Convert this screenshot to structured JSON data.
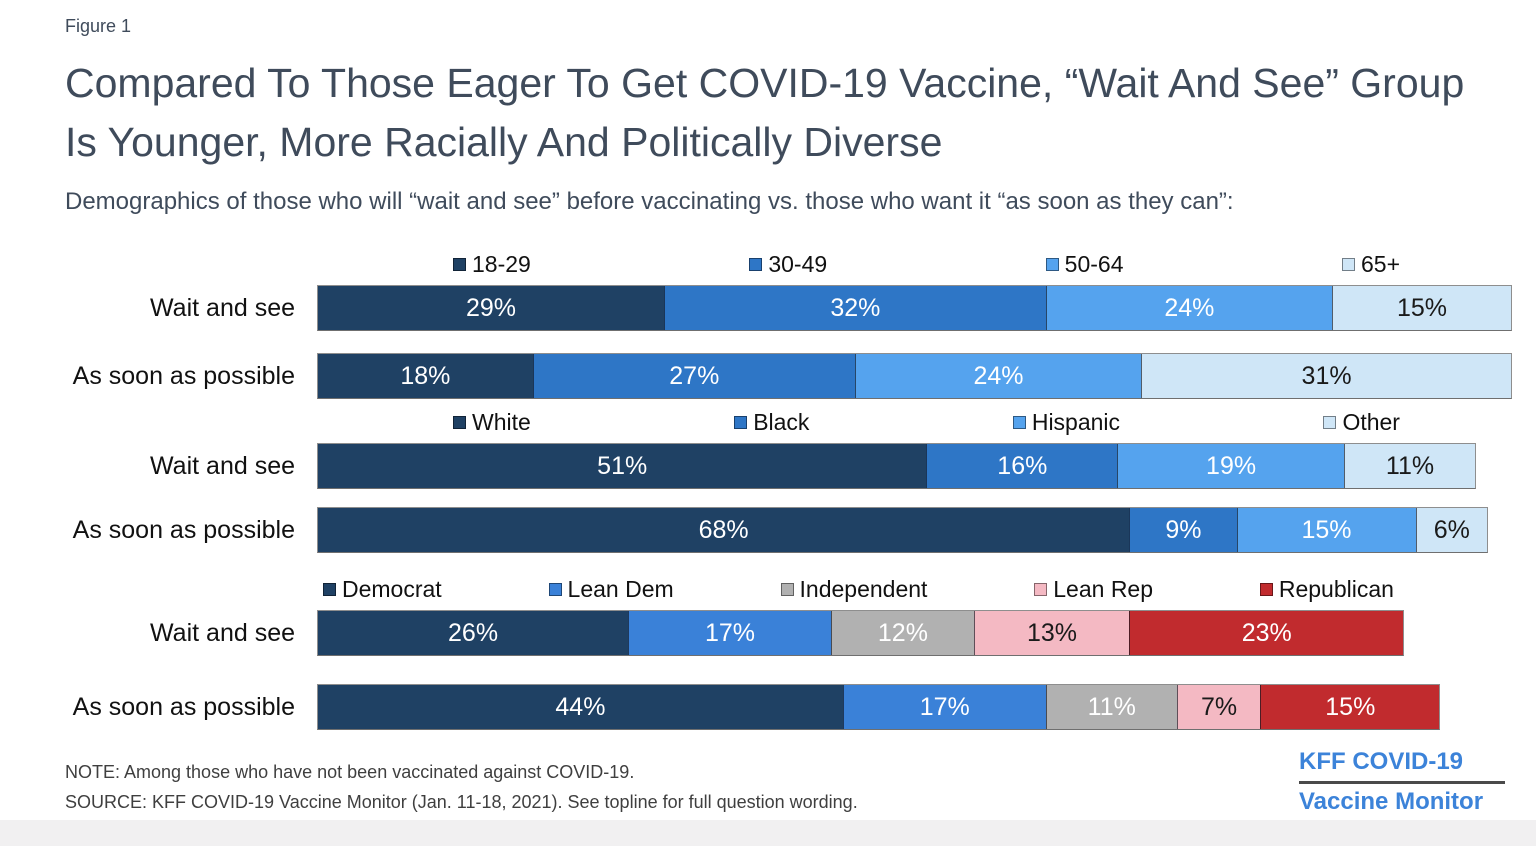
{
  "header": {
    "figure_label": "Figure 1",
    "title": "Compared To Those Eager To Get COVID-19 Vaccine, “Wait And See” Group Is Younger, More Racially And Politically Diverse",
    "subtitle": "Demographics of those who will “wait and see” before vaccinating vs. those who want it “as soon as they can”:"
  },
  "chart_data": [
    {
      "type": "bar",
      "stacked": true,
      "orientation": "horizontal",
      "group": "age",
      "xlim": [
        0,
        100
      ],
      "value_suffix": "%",
      "legend_position": "top",
      "categories": [
        "18-29",
        "30-49",
        "50-64",
        "65+"
      ],
      "colors": [
        "#1f4164",
        "#2e76c6",
        "#55a3ee",
        "#cfe6f7"
      ],
      "label_colors": [
        "#ffffff",
        "#ffffff",
        "#ffffff",
        "#1a1a1a"
      ],
      "series": [
        {
          "name": "Wait and see",
          "values": [
            29,
            32,
            24,
            15
          ]
        },
        {
          "name": "As soon as possible",
          "values": [
            18,
            27,
            24,
            31
          ]
        }
      ]
    },
    {
      "type": "bar",
      "stacked": true,
      "orientation": "horizontal",
      "group": "race",
      "xlim": [
        0,
        100
      ],
      "value_suffix": "%",
      "legend_position": "top",
      "categories": [
        "White",
        "Black",
        "Hispanic",
        "Other"
      ],
      "colors": [
        "#1f4164",
        "#2e76c6",
        "#55a3ee",
        "#cfe6f7"
      ],
      "label_colors": [
        "#ffffff",
        "#ffffff",
        "#ffffff",
        "#1a1a1a"
      ],
      "series": [
        {
          "name": "Wait and see",
          "values": [
            51,
            16,
            19,
            11
          ]
        },
        {
          "name": "As soon as possible",
          "values": [
            68,
            9,
            15,
            6
          ]
        }
      ]
    },
    {
      "type": "bar",
      "stacked": true,
      "orientation": "horizontal",
      "group": "party",
      "xlim": [
        0,
        100
      ],
      "value_suffix": "%",
      "legend_position": "top",
      "categories": [
        "Democrat",
        "Lean Dem",
        "Independent",
        "Lean Rep",
        "Republican"
      ],
      "colors": [
        "#1f4164",
        "#3a81d8",
        "#b1b1b1",
        "#f4b9c3",
        "#c12b2e"
      ],
      "label_colors": [
        "#ffffff",
        "#ffffff",
        "#ffffff",
        "#1a1a1a",
        "#ffffff"
      ],
      "series": [
        {
          "name": "Wait and see",
          "values": [
            26,
            17,
            12,
            13,
            23
          ]
        },
        {
          "name": "As soon as possible",
          "values": [
            44,
            17,
            11,
            7,
            15
          ]
        }
      ]
    }
  ],
  "footer": {
    "note": "NOTE: Among those who have not been vaccinated against COVID-19.",
    "source": "SOURCE: KFF COVID-19 Vaccine Monitor (Jan. 11-18, 2021). See topline for full  question wording.",
    "logo_line1": "KFF COVID-19",
    "logo_line2": "Vaccine Monitor",
    "logo_color": "#3c83d9"
  }
}
